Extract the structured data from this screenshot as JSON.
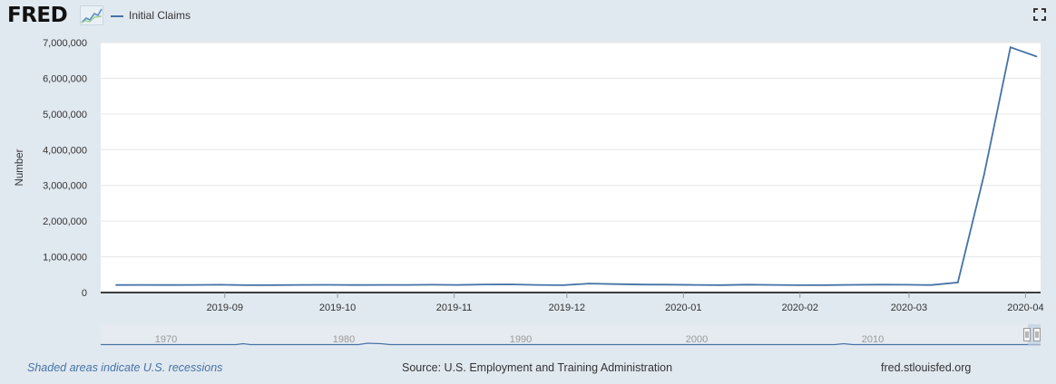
{
  "header": {
    "logo_text": "FRED",
    "legend_label": "Initial Claims"
  },
  "footer": {
    "recession_note": "Shaded areas indicate U.S. recessions",
    "source": "Source: U.S. Employment and Training Administration",
    "site": "fred.stlouisfed.org"
  },
  "colors": {
    "series": "#4572a7",
    "background": "#e1e9f0",
    "plot_background": "#ffffff"
  },
  "icons": {
    "logo_graph": "trend-graph-icon",
    "expand": "fullscreen-expand-icon",
    "navigator_handles": "range-handle-icon"
  },
  "chart_data": {
    "type": "line",
    "ylabel": "Number",
    "ylim": [
      0,
      7000000
    ],
    "y_ticks": [
      0,
      1000000,
      2000000,
      3000000,
      4000000,
      5000000,
      6000000,
      7000000
    ],
    "y_tick_labels": [
      "0",
      "1,000,000",
      "2,000,000",
      "3,000,000",
      "4,000,000",
      "5,000,000",
      "6,000,000",
      "7,000,000"
    ],
    "x_tick_labels": [
      "2019-09",
      "2019-10",
      "2019-11",
      "2019-12",
      "2020-01",
      "2020-02",
      "2020-03",
      "2020-04"
    ],
    "grid": "horizontal",
    "legend_placement": "top-left",
    "series": [
      {
        "name": "Initial Claims",
        "x": [
          "2019-08-03",
          "2019-08-10",
          "2019-08-17",
          "2019-08-24",
          "2019-08-31",
          "2019-09-07",
          "2019-09-14",
          "2019-09-21",
          "2019-09-28",
          "2019-10-05",
          "2019-10-12",
          "2019-10-19",
          "2019-10-26",
          "2019-11-02",
          "2019-11-09",
          "2019-11-16",
          "2019-11-23",
          "2019-11-30",
          "2019-12-07",
          "2019-12-14",
          "2019-12-21",
          "2019-12-28",
          "2020-01-04",
          "2020-01-11",
          "2020-01-18",
          "2020-01-25",
          "2020-02-01",
          "2020-02-08",
          "2020-02-15",
          "2020-02-22",
          "2020-02-29",
          "2020-03-07",
          "2020-03-14",
          "2020-03-21",
          "2020-03-28",
          "2020-04-04"
        ],
        "values": [
          210000,
          212000,
          210000,
          214000,
          218000,
          205000,
          208000,
          213000,
          215000,
          210000,
          214000,
          212000,
          217000,
          212000,
          226000,
          227000,
          213000,
          205000,
          250000,
          235000,
          222000,
          220000,
          214000,
          207000,
          220000,
          213000,
          205000,
          207000,
          215000,
          221000,
          217000,
          211000,
          282000,
          3307000,
          6867000,
          6606000
        ]
      }
    ],
    "navigator": {
      "x_tick_labels": [
        "1970",
        "1980",
        "1990",
        "2000",
        "2010"
      ]
    }
  }
}
